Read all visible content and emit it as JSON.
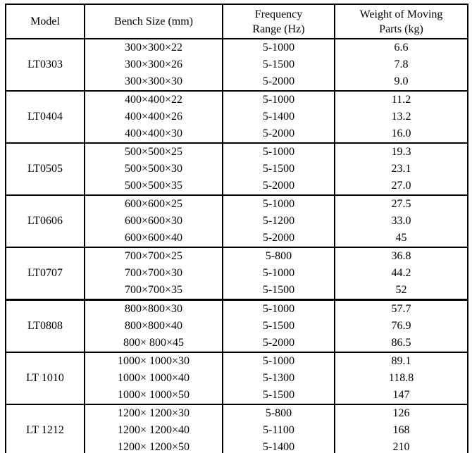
{
  "table": {
    "headers": [
      {
        "id": "model",
        "label": "Model"
      },
      {
        "id": "bench",
        "label": "Bench Size (mm)"
      },
      {
        "id": "frequency",
        "label": "Frequency\nRange (Hz)"
      },
      {
        "id": "weight",
        "label": "Weight of Moving\nParts (kg)"
      }
    ],
    "groups": [
      {
        "model": "LT0303",
        "rows": [
          {
            "bench": "300×300×22",
            "freq": "5-1000",
            "weight": "6.6"
          },
          {
            "bench": "300×300×26",
            "freq": "5-1500",
            "weight": "7.8"
          },
          {
            "bench": "300×300×30",
            "freq": "5-2000",
            "weight": "9.0"
          }
        ]
      },
      {
        "model": "LT0404",
        "rows": [
          {
            "bench": "400×400×22",
            "freq": "5-1000",
            "weight": "11.2"
          },
          {
            "bench": "400×400×26",
            "freq": "5-1400",
            "weight": "13.2"
          },
          {
            "bench": "400×400×30",
            "freq": "5-2000",
            "weight": "16.0"
          }
        ]
      },
      {
        "model": "LT0505",
        "rows": [
          {
            "bench": "500×500×25",
            "freq": "5-1000",
            "weight": "19.3"
          },
          {
            "bench": "500×500×30",
            "freq": "5-1500",
            "weight": "23.1"
          },
          {
            "bench": "500×500×35",
            "freq": "5-2000",
            "weight": "27.0"
          }
        ]
      },
      {
        "model": "LT0606",
        "rows": [
          {
            "bench": "600×600×25",
            "freq": "5-1000",
            "weight": "27.5"
          },
          {
            "bench": "600×600×30",
            "freq": "5-1200",
            "weight": "33.0"
          },
          {
            "bench": "600×600×40",
            "freq": "5-2000",
            "weight": "45"
          }
        ]
      },
      {
        "model": "LT0707",
        "rows": [
          {
            "bench": "700×700×25",
            "freq": "5-800",
            "weight": "36.8"
          },
          {
            "bench": "700×700×30",
            "freq": "5-1000",
            "weight": "44.2"
          },
          {
            "bench": "700×700×35",
            "freq": "5-1500",
            "weight": "52"
          }
        ]
      },
      {
        "model": "LT0808",
        "rows": [
          {
            "bench": "800×800×30",
            "freq": "5-1000",
            "weight": "57.7"
          },
          {
            "bench": "800×800×40",
            "freq": "5-1500",
            "weight": "76.9"
          },
          {
            "bench": "800× 800×45",
            "freq": "5-2000",
            "weight": "86.5"
          }
        ]
      },
      {
        "model": "LT 1010",
        "rows": [
          {
            "bench": "1000× 1000×30",
            "freq": "5-1000",
            "weight": "89.1"
          },
          {
            "bench": "1000× 1000×40",
            "freq": "5-1300",
            "weight": "118.8"
          },
          {
            "bench": "1000× 1000×50",
            "freq": "5-1500",
            "weight": "147"
          }
        ]
      },
      {
        "model": "LT 1212",
        "rows": [
          {
            "bench": "1200× 1200×30",
            "freq": "5-800",
            "weight": "126"
          },
          {
            "bench": "1200× 1200×40",
            "freq": "5-1100",
            "weight": "168"
          },
          {
            "bench": "1200× 1200×50",
            "freq": "5-1400",
            "weight": "210"
          }
        ]
      }
    ]
  }
}
